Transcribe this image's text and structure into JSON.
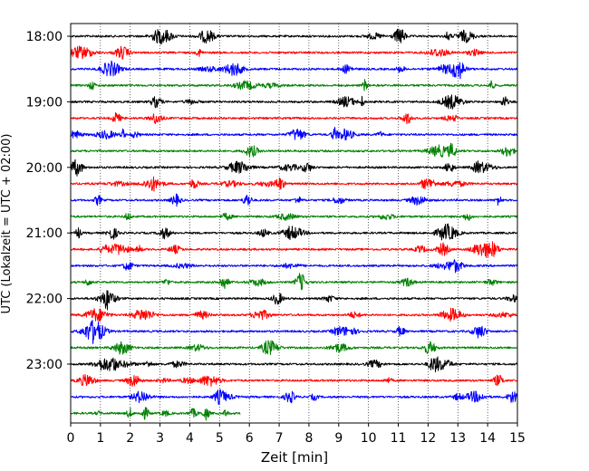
{
  "chart_data": {
    "type": "line",
    "title": "",
    "xlabel": "Zeit  [min]",
    "ylabel": "UTC (Lokalzeit = UTC + 02:00)",
    "xlim": [
      0,
      15
    ],
    "x_ticks": [
      0,
      1,
      2,
      3,
      4,
      5,
      6,
      7,
      8,
      9,
      10,
      11,
      12,
      13,
      14,
      15
    ],
    "x_grid": true,
    "y_grid": false,
    "y_tick_labels": [
      "18:00",
      "19:00",
      "20:00",
      "21:00",
      "22:00",
      "23:00"
    ],
    "row_interval_min": 15,
    "row_colors": [
      "#000000",
      "#ff0000",
      "#0000ff",
      "#008000"
    ],
    "rows": [
      {
        "start": "18:00",
        "color": "#000000",
        "end_min": 15
      },
      {
        "start": "18:15",
        "color": "#ff0000",
        "end_min": 15
      },
      {
        "start": "18:30",
        "color": "#0000ff",
        "end_min": 15
      },
      {
        "start": "18:45",
        "color": "#008000",
        "end_min": 15
      },
      {
        "start": "19:00",
        "color": "#000000",
        "end_min": 15
      },
      {
        "start": "19:15",
        "color": "#ff0000",
        "end_min": 15
      },
      {
        "start": "19:30",
        "color": "#0000ff",
        "end_min": 15
      },
      {
        "start": "19:45",
        "color": "#008000",
        "end_min": 15
      },
      {
        "start": "20:00",
        "color": "#000000",
        "end_min": 15
      },
      {
        "start": "20:15",
        "color": "#ff0000",
        "end_min": 15
      },
      {
        "start": "20:30",
        "color": "#0000ff",
        "end_min": 15
      },
      {
        "start": "20:45",
        "color": "#008000",
        "end_min": 15
      },
      {
        "start": "21:00",
        "color": "#000000",
        "end_min": 15
      },
      {
        "start": "21:15",
        "color": "#ff0000",
        "end_min": 15
      },
      {
        "start": "21:30",
        "color": "#0000ff",
        "end_min": 15
      },
      {
        "start": "21:45",
        "color": "#008000",
        "end_min": 15
      },
      {
        "start": "22:00",
        "color": "#000000",
        "end_min": 15
      },
      {
        "start": "22:15",
        "color": "#ff0000",
        "end_min": 15
      },
      {
        "start": "22:30",
        "color": "#0000ff",
        "end_min": 15
      },
      {
        "start": "22:45",
        "color": "#008000",
        "end_min": 15
      },
      {
        "start": "23:00",
        "color": "#000000",
        "end_min": 15
      },
      {
        "start": "23:15",
        "color": "#ff0000",
        "end_min": 15
      },
      {
        "start": "23:30",
        "color": "#0000ff",
        "end_min": 15
      },
      {
        "start": "23:45",
        "color": "#008000",
        "end_min": 5.7
      }
    ]
  }
}
